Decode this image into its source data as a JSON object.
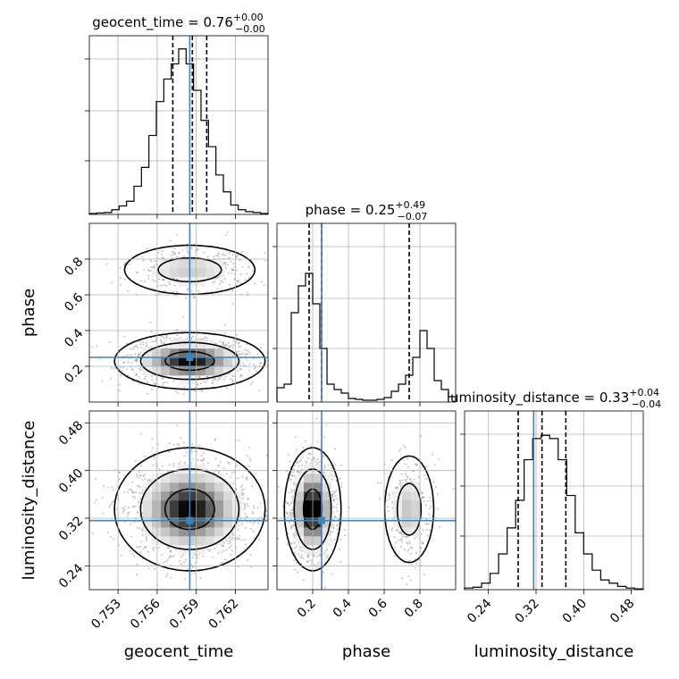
{
  "chart_data": {
    "type": "corner",
    "parameters": [
      "geocent_time",
      "phase",
      "luminosity_distance"
    ],
    "titles": [
      {
        "name": "geocent_time",
        "median": "0.76",
        "plus": "+0.00",
        "minus": "−0.00"
      },
      {
        "name": "phase",
        "median": "0.25",
        "plus": "+0.49",
        "minus": "−0.07"
      },
      {
        "name": "luminosity_distance",
        "median": "0.33",
        "plus": "+0.04",
        "minus": "−0.04"
      }
    ],
    "ranges": [
      [
        0.7508,
        0.7645
      ],
      [
        0.0,
        1.0
      ],
      [
        0.2,
        0.5
      ]
    ],
    "ticks": {
      "geocent_time": {
        "values": [
          0.753,
          0.756,
          0.759,
          0.762
        ],
        "labels": [
          "0.753",
          "0.756",
          "0.759",
          "0.762"
        ]
      },
      "phase": {
        "values": [
          0.2,
          0.4,
          0.6,
          0.8
        ],
        "labels": [
          "0.2",
          "0.4",
          "0.6",
          "0.8"
        ]
      },
      "luminosity_distance": {
        "values": [
          0.24,
          0.32,
          0.4,
          0.48
        ],
        "labels": [
          "0.24",
          "0.32",
          "0.40",
          "0.48"
        ]
      }
    },
    "truths": [
      0.7585,
      0.25,
      0.316
    ],
    "quantiles": [
      [
        0.7572,
        0.7587,
        0.7598
      ],
      [
        0.18,
        0.25,
        0.74
      ],
      [
        0.29,
        0.33,
        0.37
      ]
    ],
    "histograms": [
      {
        "counts": [
          0.5,
          0.8,
          1.0,
          2.5,
          4.5,
          7,
          15,
          25,
          42,
          60,
          72,
          80,
          88,
          80,
          66,
          50,
          36,
          21,
          12,
          5,
          2.5,
          1.5,
          1.0,
          0.5
        ],
        "ymax": 95
      },
      {
        "counts": [
          8,
          10,
          50,
          65,
          72,
          55,
          30,
          10,
          7,
          5,
          2,
          1.5,
          1,
          1,
          1.5,
          2.5,
          6,
          10,
          15,
          25,
          40,
          30,
          12,
          7,
          3
        ],
        "ymax": 100
      },
      {
        "counts": [
          1,
          1.5,
          4,
          10,
          22,
          38,
          55,
          80,
          93,
          95,
          93,
          80,
          58,
          35,
          22,
          12,
          6,
          4,
          2,
          1,
          0.5
        ],
        "ymax": 110
      }
    ],
    "densities": [
      {
        "x": "geocent_time",
        "y": "phase",
        "modes": [
          {
            "x": 0.7585,
            "y": 0.23,
            "sx": 0.0019,
            "sy": 0.052,
            "w": 0.76
          },
          {
            "x": 0.7585,
            "y": 0.74,
            "sx": 0.0019,
            "sy": 0.052,
            "w": 0.24
          }
        ]
      },
      {
        "x": "geocent_time",
        "y": "luminosity_distance",
        "modes": [
          {
            "x": 0.7585,
            "y": 0.335,
            "sx": 0.0019,
            "sy": 0.034,
            "w": 1.0
          }
        ]
      },
      {
        "x": "phase",
        "y": "luminosity_distance",
        "modes": [
          {
            "x": 0.2,
            "y": 0.335,
            "sx": 0.052,
            "sy": 0.034,
            "w": 0.76
          },
          {
            "x": 0.74,
            "y": 0.335,
            "sx": 0.052,
            "sy": 0.034,
            "w": 0.24
          }
        ]
      }
    ],
    "contour_levels": [
      0.39,
      0.86,
      0.99
    ],
    "grid": true
  }
}
